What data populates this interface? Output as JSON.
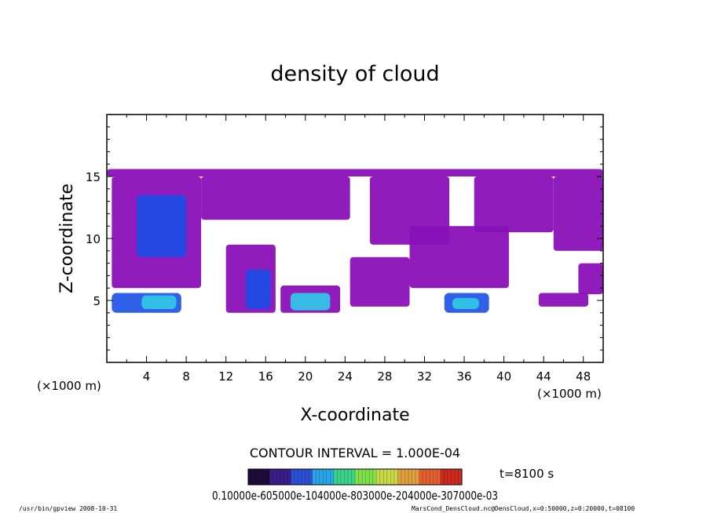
{
  "chart_data": {
    "type": "heatmap",
    "title": "density of cloud",
    "xlabel": "X-coordinate",
    "ylabel": "Z-coordinate",
    "x_unit_left": "(×1000 m)",
    "x_unit_right": "(×1000 m)",
    "xlim": [
      0,
      50
    ],
    "ylim": [
      0,
      20
    ],
    "xticks": [
      "4",
      "8",
      "12",
      "16",
      "20",
      "24",
      "28",
      "32",
      "36",
      "40",
      "44",
      "48"
    ],
    "yticks": [
      "5",
      "10",
      "15"
    ],
    "contour_interval": "CONTOUR INTERVAL = 1.000E-04",
    "time_label": "t=8100 s",
    "colorbar_labels": "0.10000e-605000e-104000e-803000e-204000e-307000e-03",
    "colorbar_colors": [
      "#1e0a3c",
      "#3a1e8a",
      "#2d4fd6",
      "#2aa6e8",
      "#3ad28a",
      "#7fe04a",
      "#c8d84a",
      "#e0a040",
      "#e06030",
      "#d02a20"
    ],
    "colors": {
      "cloud_base": "#8a10b8",
      "cloud_mid": "#5a2cc8",
      "cloud_dense": "#1a4ee6",
      "cloud_peak": "#33c4e6"
    },
    "regions": [
      {
        "x0": 0,
        "x1": 50,
        "z0": 15.0,
        "z1": 15.6,
        "level": 1
      },
      {
        "x0": 0.5,
        "x1": 9.5,
        "z0": 6.0,
        "z1": 15.0,
        "level": 1
      },
      {
        "x0": 3.0,
        "x1": 8.0,
        "z0": 8.5,
        "z1": 13.5,
        "level": 2
      },
      {
        "x0": 0.5,
        "x1": 7.5,
        "z0": 4.0,
        "z1": 5.6,
        "level": 2
      },
      {
        "x0": 3.5,
        "x1": 7.0,
        "z0": 4.3,
        "z1": 5.4,
        "level": 3
      },
      {
        "x0": 9.5,
        "x1": 24.5,
        "z0": 11.5,
        "z1": 15.0,
        "level": 1
      },
      {
        "x0": 12.0,
        "x1": 17.0,
        "z0": 4.0,
        "z1": 9.5,
        "level": 1
      },
      {
        "x0": 14.0,
        "x1": 16.5,
        "z0": 4.3,
        "z1": 7.5,
        "level": 2
      },
      {
        "x0": 17.5,
        "x1": 23.5,
        "z0": 4.0,
        "z1": 6.2,
        "level": 1
      },
      {
        "x0": 18.5,
        "x1": 22.5,
        "z0": 4.2,
        "z1": 5.6,
        "level": 3
      },
      {
        "x0": 24.5,
        "x1": 30.5,
        "z0": 4.5,
        "z1": 8.5,
        "level": 1
      },
      {
        "x0": 26.5,
        "x1": 34.5,
        "z0": 9.5,
        "z1": 15.0,
        "level": 1
      },
      {
        "x0": 30.5,
        "x1": 40.5,
        "z0": 6.0,
        "z1": 11.0,
        "level": 1
      },
      {
        "x0": 34.0,
        "x1": 38.5,
        "z0": 4.0,
        "z1": 5.6,
        "level": 2
      },
      {
        "x0": 34.8,
        "x1": 37.5,
        "z0": 4.3,
        "z1": 5.2,
        "level": 3
      },
      {
        "x0": 37.0,
        "x1": 45.0,
        "z0": 10.5,
        "z1": 15.0,
        "level": 1
      },
      {
        "x0": 43.5,
        "x1": 48.5,
        "z0": 4.5,
        "z1": 5.6,
        "level": 1
      },
      {
        "x0": 45.0,
        "x1": 50.0,
        "z0": 9.0,
        "z1": 15.0,
        "level": 1
      },
      {
        "x0": 47.5,
        "x1": 50.0,
        "z0": 5.5,
        "z1": 8.0,
        "level": 1
      }
    ]
  },
  "footer": {
    "left": "/usr/bin/gpview   2008-10-31",
    "right": "MarsCond_DensCloud.nc@DensCloud,x=0:50000,z=0:20000,t=08100"
  }
}
